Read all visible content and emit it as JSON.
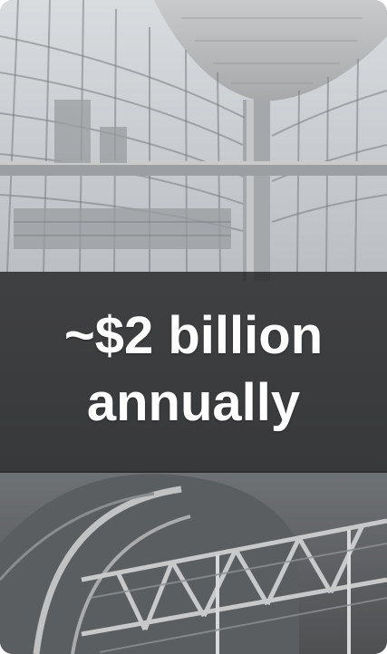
{
  "caption": {
    "line1": "~$2 billion",
    "line2": "annually"
  },
  "colors": {
    "overlay": "#1c1c1e",
    "text": "#ffffff"
  },
  "image": {
    "icon": "atrium-photo"
  }
}
